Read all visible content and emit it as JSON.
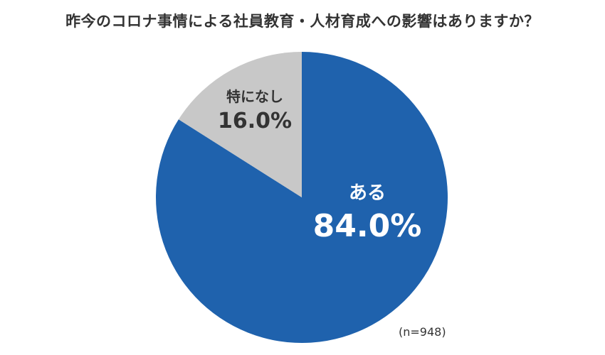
{
  "chart_data": {
    "type": "pie",
    "title": "昨今のコロナ事情による社員教育・人材育成への影響はありますか？",
    "slices": [
      {
        "label": "ある",
        "value": 84.0,
        "value_label": "84.0%",
        "color": "#1f62ad",
        "text_color": "#ffffff"
      },
      {
        "label": "特になし",
        "value": 16.0,
        "value_label": "16.0%",
        "color": "#c8c8c8",
        "text_color": "#333333"
      }
    ],
    "start": "12 o'clock",
    "direction": "clockwise",
    "note": "(n=948)"
  }
}
